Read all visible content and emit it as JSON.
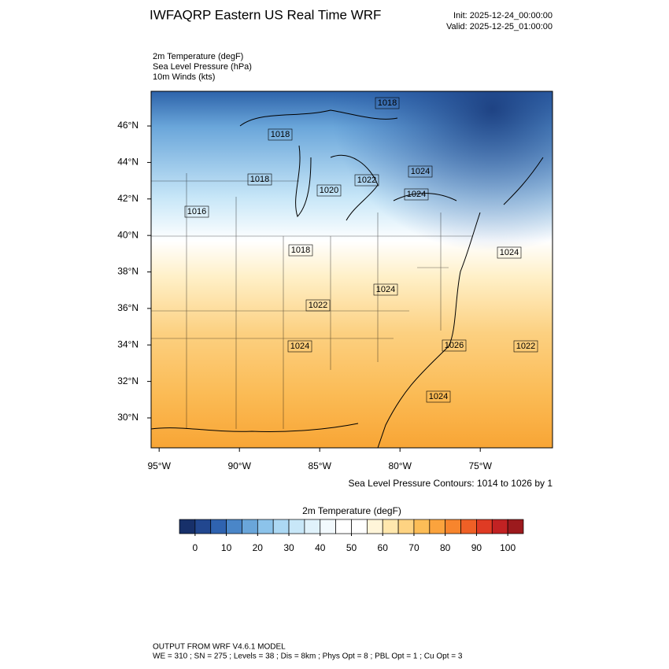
{
  "header": {
    "title": "IWFAQRP Eastern US Real Time WRF",
    "init": "Init: 2025-12-24_00:00:00",
    "valid": "Valid: 2025-12-25_01:00:00"
  },
  "fields": [
    "2m Temperature   (degF)",
    "Sea Level Pressure   (hPa)",
    "10m Winds   (kts)"
  ],
  "map": {
    "xlim": [
      -95.5,
      -70.5
    ],
    "ylim": [
      28.36,
      47.9
    ],
    "lat_ticks": [
      {
        "value": 30,
        "label": "30°N"
      },
      {
        "value": 32,
        "label": "32°N"
      },
      {
        "value": 34,
        "label": "34°N"
      },
      {
        "value": 36,
        "label": "36°N"
      },
      {
        "value": 38,
        "label": "38°N"
      },
      {
        "value": 40,
        "label": "40°N"
      },
      {
        "value": 42,
        "label": "42°N"
      },
      {
        "value": 44,
        "label": "44°N"
      },
      {
        "value": 46,
        "label": "46°N"
      }
    ],
    "lon_ticks": [
      {
        "value": -95,
        "label": "95°W"
      },
      {
        "value": -90,
        "label": "90°W"
      },
      {
        "value": -85,
        "label": "85°W"
      },
      {
        "value": -80,
        "label": "80°W"
      },
      {
        "value": -75,
        "label": "75°W"
      }
    ],
    "pressure_labels": [
      "1018",
      "1018",
      "1018",
      "1016",
      "1020",
      "1022",
      "1024",
      "1024",
      "1024",
      "1018",
      "1022",
      "1024",
      "1024",
      "1026",
      "1022",
      "1024"
    ],
    "contour_note": "Sea Level Pressure Contours: 1014 to 1026 by 1"
  },
  "colorbar": {
    "title": "2m Temperature  (degF)",
    "range": [
      -5,
      105
    ],
    "colors": [
      "#17306a",
      "#22478f",
      "#2f63b0",
      "#4a86c8",
      "#6aa6da",
      "#8cc3ea",
      "#acd8f3",
      "#c8e7f8",
      "#e0f2fb",
      "#f2f9fd",
      "#ffffff",
      "#ffffff",
      "#fff5d9",
      "#ffe7ad",
      "#fed382",
      "#fcbd57",
      "#fba33d",
      "#f7852d",
      "#ef6026",
      "#df3b24",
      "#c22223",
      "#9c1a1d"
    ],
    "ticks": [
      0,
      10,
      20,
      30,
      40,
      50,
      60,
      70,
      80,
      90,
      100
    ]
  },
  "footer": [
    "OUTPUT FROM WRF V4.6.1 MODEL",
    "WE = 310 ; SN = 275 ; Levels = 38 ; Dis = 8km ; Phys Opt = 8 ; PBL Opt = 1 ; Cu Opt = 3"
  ]
}
